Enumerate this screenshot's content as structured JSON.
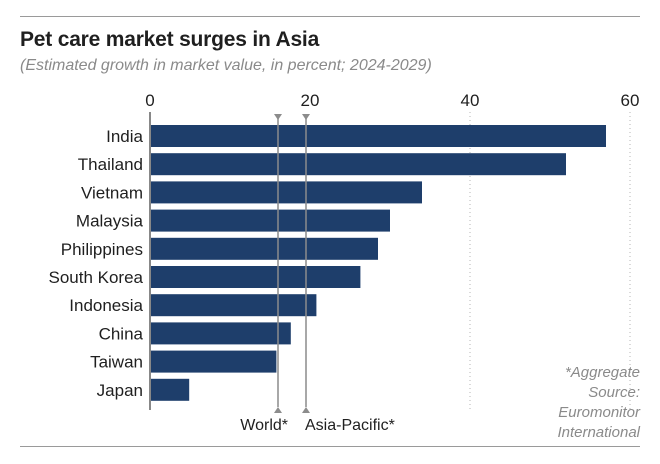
{
  "chart_data": {
    "type": "bar",
    "orientation": "horizontal",
    "title": "Pet care market surges in Asia",
    "subtitle": "(Estimated growth in market value, in percent; 2024-2029)",
    "categories": [
      "India",
      "Thailand",
      "Vietnam",
      "Malaysia",
      "Philippines",
      "South Korea",
      "Indonesia",
      "China",
      "Taiwan",
      "Japan"
    ],
    "values": [
      57,
      52,
      34,
      30,
      28.5,
      26.3,
      20.8,
      17.6,
      15.8,
      4.9
    ],
    "xlim": [
      0,
      60
    ],
    "xticks": [
      0,
      20,
      40,
      60
    ],
    "xtick_labels": [
      "0",
      "20",
      "40",
      "60"
    ],
    "grid": "vertical dotted at 40 and 60",
    "bar_color": "#1e3e6b",
    "reference_lines": [
      {
        "label": "World*",
        "value": 16
      },
      {
        "label": "Asia-Pacific*",
        "value": 19.5
      }
    ],
    "footnotes": [
      "*Aggregate",
      "Source:",
      "Euromonitor",
      "International"
    ]
  }
}
